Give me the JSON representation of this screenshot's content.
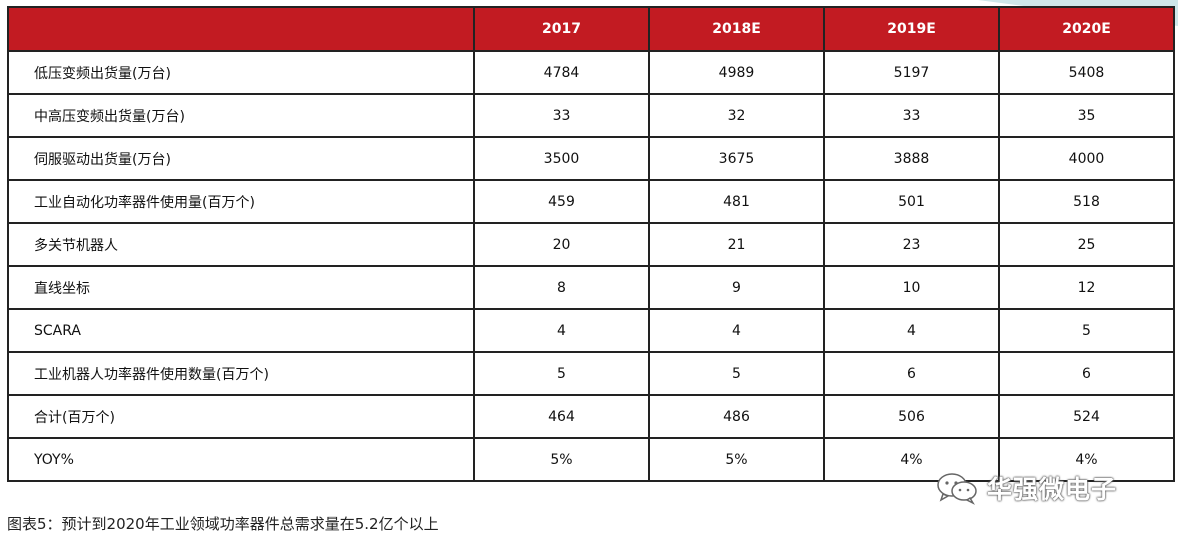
{
  "table": {
    "columns": [
      "",
      "2017",
      "2018E",
      "2019E",
      "2020E"
    ],
    "rows": [
      {
        "label": "低压变频出货量(万台)",
        "values": [
          "4784",
          "4989",
          "5197",
          "5408"
        ]
      },
      {
        "label": "中高压变频出货量(万台)",
        "values": [
          "33",
          "32",
          "33",
          "35"
        ]
      },
      {
        "label": "伺服驱动出货量(万台)",
        "values": [
          "3500",
          "3675",
          "3888",
          "4000"
        ]
      },
      {
        "label": "工业自动化功率器件使用量(百万个)",
        "values": [
          "459",
          "481",
          "501",
          "518"
        ]
      },
      {
        "label": "多关节机器人",
        "values": [
          "20",
          "21",
          "23",
          "25"
        ]
      },
      {
        "label": "直线坐标",
        "values": [
          "8",
          "9",
          "10",
          "12"
        ]
      },
      {
        "label": "SCARA",
        "values": [
          "4",
          "4",
          "4",
          "5"
        ]
      },
      {
        "label": "工业机器人功率器件使用数量(百万个)",
        "values": [
          "5",
          "5",
          "6",
          "6"
        ]
      },
      {
        "label": "合计(百万个)",
        "values": [
          "464",
          "486",
          "506",
          "524"
        ]
      },
      {
        "label": "YOY%",
        "values": [
          "5%",
          "5%",
          "4%",
          "4%"
        ]
      }
    ]
  },
  "watermark": {
    "text": "华强微电子",
    "icon": "wechat-icon"
  },
  "caption": "图表5：预计到2020年工业领域功率器件总需求量在5.2亿个以上",
  "colors": {
    "header_bg": "#c21b22",
    "header_text": "#ffffff",
    "border": "#222222"
  }
}
